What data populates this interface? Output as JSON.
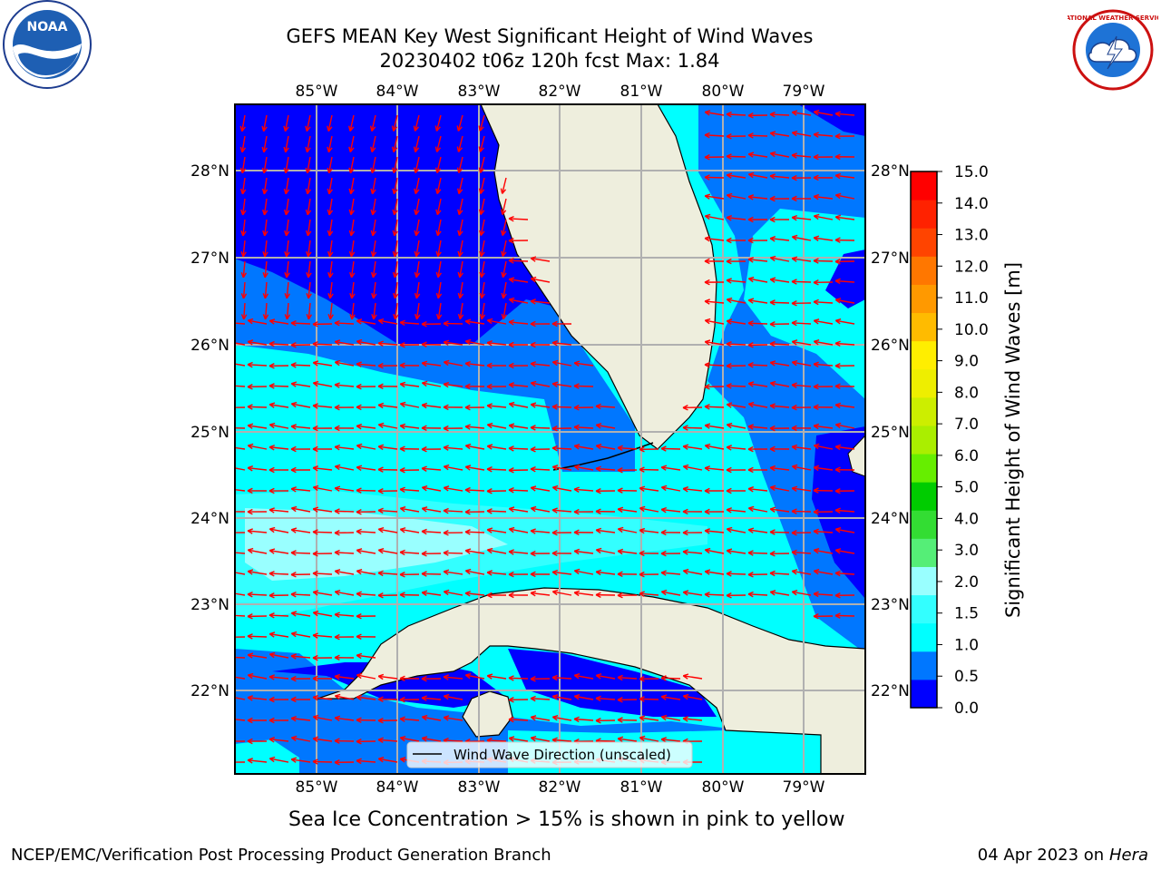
{
  "header": {
    "title_line1": "GEFS MEAN Key West Significant Height of Wind Waves",
    "title_line2": "20230402 t06z 120h fcst   Max: 1.84"
  },
  "logos": {
    "left": {
      "name": "noaa-logo",
      "text": "NOAA"
    },
    "right": {
      "name": "national-weather-service-logo",
      "text": "NATIONAL WEATHER SERVICE"
    }
  },
  "map": {
    "lon_labels": [
      "85°W",
      "84°W",
      "83°W",
      "82°W",
      "81°W",
      "80°W",
      "79°W"
    ],
    "lat_labels": [
      "28°N",
      "27°N",
      "26°N",
      "25°N",
      "24°N",
      "23°N",
      "22°N"
    ],
    "legend_label": "Wind Wave Direction (unscaled)",
    "arrow_color": "#ff0000",
    "land_color": "#eeeedd"
  },
  "colorbar": {
    "label": "Significant Height of Wind Waves [m]",
    "ticks": [
      "15.0",
      "14.0",
      "13.0",
      "12.0",
      "11.0",
      "10.0",
      "9.0",
      "8.0",
      "7.0",
      "6.0",
      "5.0",
      "4.0",
      "3.0",
      "2.0",
      "1.5",
      "1.0",
      "0.5",
      "0.0"
    ],
    "colors": [
      "#0000ff",
      "#0077ff",
      "#00ffff",
      "#33ffff",
      "#99ffff",
      "#55ee77",
      "#33dd33",
      "#00cc00",
      "#66ee00",
      "#aaee00",
      "#ccee00",
      "#eeee00",
      "#ffee00",
      "#ffbb00",
      "#ff9900",
      "#ff7700",
      "#ff4400",
      "#ff2200",
      "#ff0000"
    ]
  },
  "footer": {
    "subtitle": "Sea Ice Concentration > 15% is shown in pink to yellow",
    "credit": "NCEP/EMC/Verification Post Processing Product Generation Branch",
    "date": "04 Apr 2023 on",
    "machine": "Hera"
  }
}
